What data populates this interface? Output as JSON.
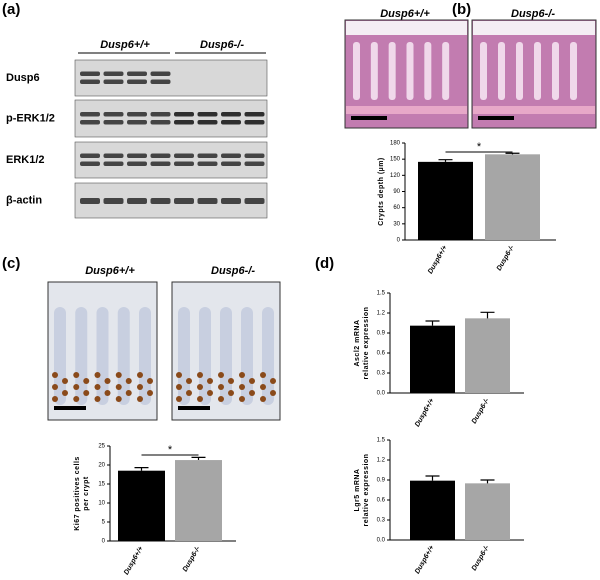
{
  "panels": [
    "(a)",
    "(b)",
    "(c)",
    "(d)"
  ],
  "blot": {
    "groups": [
      "Dusp6+/+",
      "Dusp6-/-"
    ],
    "rows": [
      "Dusp6",
      "p-ERK1/2",
      "ERK1/2",
      "β-actin"
    ]
  },
  "images_b": [
    "Dusp6+/+",
    "Dusp6-/-"
  ],
  "images_c": [
    "Dusp6+/+",
    "Dusp6-/-"
  ],
  "chart_data": [
    {
      "type": "bar",
      "ylabel": [
        "Crypts depth (µm)"
      ],
      "categories": [
        "Dusp6+/+",
        "Dusp6-/-"
      ],
      "values": [
        145,
        159
      ],
      "errors": [
        4,
        2
      ],
      "colors": [
        "#000000",
        "#a6a6a6"
      ],
      "ylim": [
        0,
        180
      ],
      "yticks": [
        0,
        30,
        60,
        90,
        120,
        150,
        180
      ],
      "significance": "*"
    },
    {
      "type": "bar",
      "ylabel": [
        "Ki67 positives cells",
        "per crypt"
      ],
      "categories": [
        "Dusp6+/+",
        "Dusp6-/-"
      ],
      "values": [
        18.5,
        21.3
      ],
      "errors": [
        0.8,
        0.7
      ],
      "colors": [
        "#000000",
        "#a6a6a6"
      ],
      "ylim": [
        0,
        25
      ],
      "yticks": [
        0,
        5,
        10,
        15,
        20,
        25
      ],
      "significance": "*"
    },
    {
      "type": "bar",
      "ylabel": [
        "Ascl2 mRNA",
        "relative expression"
      ],
      "categories": [
        "Dusp6+/+",
        "Dusp6-/-"
      ],
      "values": [
        1.01,
        1.12
      ],
      "errors": [
        0.07,
        0.09
      ],
      "colors": [
        "#000000",
        "#a6a6a6"
      ],
      "ylim": [
        0,
        1.5
      ],
      "yticks": [
        {
          "value": 0,
          "label": "0.0"
        },
        0.3,
        0.6,
        0.9,
        1.2,
        1.5
      ]
    },
    {
      "type": "bar",
      "ylabel": [
        "Lgr5 mRNA",
        "relative expression"
      ],
      "categories": [
        "Dusp6+/+",
        "Dusp6-/-"
      ],
      "values": [
        0.89,
        0.85
      ],
      "errors": [
        0.07,
        0.05
      ],
      "colors": [
        "#000000",
        "#a6a6a6"
      ],
      "ylim": [
        0,
        1.5
      ],
      "yticks": [
        {
          "value": 0,
          "label": "0.0"
        },
        0.3,
        0.6,
        0.9,
        1.2,
        1.5
      ]
    }
  ]
}
